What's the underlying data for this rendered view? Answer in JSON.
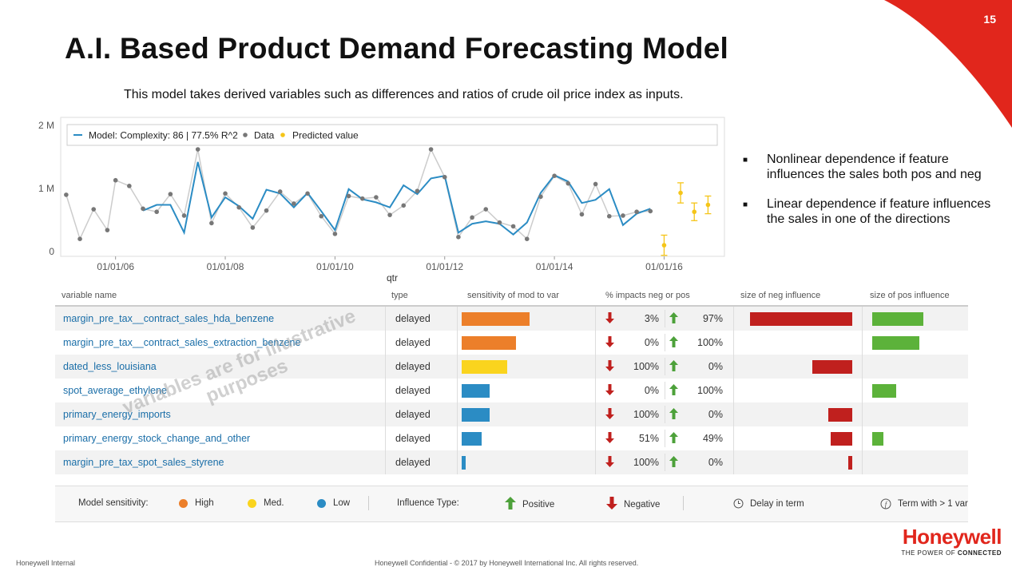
{
  "slide": {
    "page_number": "15",
    "title": "A.I. Based Product Demand Forecasting Model",
    "subtitle": "This model takes derived variables such as differences and ratios of crude oil price index as inputs.",
    "accent_color": "#e1261c"
  },
  "chart_data": {
    "type": "line",
    "legend": [
      {
        "label": "Model: Complexity: 86 | 77.5% R^2",
        "color": "#2b8cc4",
        "marker": "line"
      },
      {
        "label": "Data",
        "color": "#777777",
        "marker": "dot"
      },
      {
        "label": "Predicted value",
        "color": "#f5c518",
        "marker": "dot"
      }
    ],
    "xlabel": "qtr",
    "x_ticks": [
      "01/01/06",
      "01/01/08",
      "01/01/10",
      "01/01/12",
      "01/01/14",
      "01/01/16"
    ],
    "y_ticks": [
      "0",
      "1 M",
      "2 M"
    ],
    "ylim": [
      0,
      2000000
    ],
    "xlim": [
      2005.0,
      2017.1
    ],
    "series": [
      {
        "name": "Data",
        "x": [
          2005.1,
          2005.35,
          2005.6,
          2005.85,
          2006.0,
          2006.25,
          2006.5,
          2006.75,
          2007.0,
          2007.25,
          2007.5,
          2007.75,
          2008.0,
          2008.25,
          2008.5,
          2008.75,
          2009.0,
          2009.25,
          2009.5,
          2009.75,
          2010.0,
          2010.25,
          2010.5,
          2010.75,
          2011.0,
          2011.25,
          2011.5,
          2011.75,
          2012.0,
          2012.25,
          2012.5,
          2012.75,
          2013.0,
          2013.25,
          2013.5,
          2013.75,
          2014.0,
          2014.25,
          2014.5,
          2014.75,
          2015.0,
          2015.25,
          2015.5,
          2015.75
        ],
        "y": [
          900000,
          200000,
          670000,
          340000,
          1130000,
          1040000,
          680000,
          630000,
          910000,
          570000,
          1620000,
          450000,
          920000,
          700000,
          380000,
          650000,
          950000,
          760000,
          920000,
          560000,
          280000,
          880000,
          840000,
          860000,
          580000,
          730000,
          960000,
          1620000,
          1180000,
          230000,
          540000,
          670000,
          460000,
          400000,
          200000,
          870000,
          1200000,
          1080000,
          590000,
          1070000,
          560000,
          570000,
          630000,
          640000
        ]
      },
      {
        "name": "Model: Complexity: 86 | 77.5% R^2",
        "x": [
          2006.5,
          2006.75,
          2007.0,
          2007.25,
          2007.5,
          2007.75,
          2008.0,
          2008.25,
          2008.5,
          2008.75,
          2009.0,
          2009.25,
          2009.5,
          2009.75,
          2010.0,
          2010.25,
          2010.5,
          2010.75,
          2011.0,
          2011.25,
          2011.5,
          2011.75,
          2012.0,
          2012.25,
          2012.5,
          2012.75,
          2013.0,
          2013.25,
          2013.5,
          2013.75,
          2014.0,
          2014.25,
          2014.5,
          2014.75,
          2015.0,
          2015.25,
          2015.5,
          2015.75
        ],
        "y": [
          650000,
          740000,
          740000,
          300000,
          1420000,
          540000,
          860000,
          720000,
          520000,
          980000,
          920000,
          700000,
          930000,
          640000,
          340000,
          990000,
          830000,
          780000,
          700000,
          1050000,
          910000,
          1160000,
          1200000,
          300000,
          440000,
          480000,
          440000,
          270000,
          460000,
          930000,
          1210000,
          1110000,
          770000,
          820000,
          990000,
          420000,
          600000,
          680000
        ]
      },
      {
        "name": "Predicted value",
        "x": [
          2016.0,
          2016.3,
          2016.55,
          2016.8
        ],
        "y": [
          100000,
          930000,
          630000,
          740000
        ],
        "err": [
          160000,
          160000,
          140000,
          140000
        ]
      }
    ]
  },
  "bullets": [
    "Nonlinear dependence if feature influences the sales both pos and neg",
    "Linear dependence if feature influences the sales in one of the directions"
  ],
  "table": {
    "headers": [
      "variable name",
      "type",
      "sensitivity of mod to var",
      "% impacts neg or pos",
      "size of neg influence",
      "size of pos influence"
    ],
    "rows": [
      {
        "name": "margin_pre_tax__contract_sales_hda_benzene",
        "type": "delayed",
        "sensitivity": 0.85,
        "sens_level": "high",
        "neg": "3%",
        "pos": "97%",
        "neg_size": 0.85,
        "pos_size": 0.49
      },
      {
        "name": "margin_pre_tax__contract_sales_extraction_benzene",
        "type": "delayed",
        "sensitivity": 0.68,
        "sens_level": "high",
        "neg": "0%",
        "pos": "100%",
        "neg_size": 0,
        "pos_size": 0.45
      },
      {
        "name": "dated_less_louisiana",
        "type": "delayed",
        "sensitivity": 0.57,
        "sens_level": "med",
        "neg": "100%",
        "pos": "0%",
        "neg_size": 0.33,
        "pos_size": 0
      },
      {
        "name": "spot_average_ethylene",
        "type": "delayed",
        "sensitivity": 0.35,
        "sens_level": "low",
        "neg": "0%",
        "pos": "100%",
        "neg_size": 0,
        "pos_size": 0.23
      },
      {
        "name": "primary_energy_imports",
        "type": "delayed",
        "sensitivity": 0.35,
        "sens_level": "low",
        "neg": "100%",
        "pos": "0%",
        "neg_size": 0.2,
        "pos_size": 0
      },
      {
        "name": "primary_energy_stock_change_and_other",
        "type": "delayed",
        "sensitivity": 0.25,
        "sens_level": "low",
        "neg": "51%",
        "pos": "49%",
        "neg_size": 0.18,
        "pos_size": 0.11
      },
      {
        "name": "margin_pre_tax_spot_sales_styrene",
        "type": "delayed",
        "sensitivity": 0.05,
        "sens_level": "low",
        "neg": "100%",
        "pos": "0%",
        "neg_size": 0.03,
        "pos_size": 0
      }
    ]
  },
  "watermark": [
    "variables are for illustrative",
    "purposes"
  ],
  "legend_bar": {
    "sensitivity_label": "Model sensitivity:",
    "high": "High",
    "med": "Med.",
    "low": "Low",
    "influence_label": "Influence Type:",
    "positive": "Positive",
    "negative": "Negative",
    "delay": "Delay in term",
    "term": "Term with > 1 var"
  },
  "colors": {
    "high": "#ec7f2a",
    "med": "#fad41e",
    "low": "#2b8cc4",
    "neg": "#c0201e",
    "pos": "#5cb23a",
    "down_arrow": "#c0201e",
    "up_arrow": "#4da13a"
  },
  "footer": {
    "left": "Honeywell Internal",
    "center": "Honeywell Confidential - © 2017 by Honeywell International Inc. All rights reserved.",
    "brand": "Honeywell",
    "tagline_pre": "THE POWER OF ",
    "tagline_bold": "CONNECTED"
  }
}
